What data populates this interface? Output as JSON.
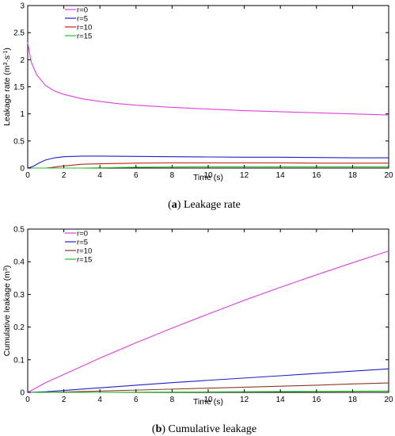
{
  "chart_data": [
    {
      "type": "line",
      "caption_label": "a",
      "caption_text": " Leakage rate",
      "xlabel": "Time (s)",
      "ylabel_main": "Leakage rate (m",
      "ylabel_sup1": "3",
      "ylabel_mid": "·s",
      "ylabel_sup2": "-1",
      "ylabel_end": ")",
      "xlim": [
        0,
        20
      ],
      "ylim": [
        0,
        3
      ],
      "xticks": [
        "0",
        "2",
        "4",
        "6",
        "8",
        "10",
        "12",
        "14",
        "16",
        "18",
        "20"
      ],
      "yticks": [
        "0",
        "0.5",
        "1",
        "1.5",
        "2",
        "2.5",
        "3"
      ],
      "series": [
        {
          "name": "r=0",
          "color": "#e040e0",
          "x": [
            0,
            0.05,
            0.2,
            0.5,
            0.8,
            1,
            1.5,
            2,
            3,
            4,
            5,
            6,
            8,
            10,
            12,
            14,
            16,
            18,
            20
          ],
          "y": [
            2.32,
            2.22,
            1.95,
            1.72,
            1.6,
            1.52,
            1.42,
            1.36,
            1.28,
            1.23,
            1.19,
            1.16,
            1.12,
            1.09,
            1.06,
            1.04,
            1.02,
            1.0,
            0.98
          ]
        },
        {
          "name": "r=5",
          "color": "#2020c8",
          "x": [
            0,
            0.3,
            0.6,
            1,
            1.5,
            2,
            3,
            4,
            6,
            8,
            10,
            12,
            14,
            16,
            18,
            20
          ],
          "y": [
            0,
            0.03,
            0.09,
            0.15,
            0.19,
            0.21,
            0.22,
            0.22,
            0.215,
            0.21,
            0.205,
            0.2,
            0.2,
            0.195,
            0.19,
            0.19
          ]
        },
        {
          "name": "r=10",
          "color": "#c02020",
          "x": [
            0,
            1,
            1.3,
            2,
            3,
            4,
            6,
            8,
            10,
            12,
            14,
            16,
            18,
            20
          ],
          "y": [
            0,
            0,
            0.01,
            0.04,
            0.07,
            0.08,
            0.09,
            0.095,
            0.095,
            0.095,
            0.095,
            0.09,
            0.09,
            0.09
          ]
        },
        {
          "name": "r=15",
          "color": "#20c020",
          "x": [
            0,
            3,
            4,
            6,
            8,
            10,
            12,
            14,
            16,
            18,
            20
          ],
          "y": [
            0,
            0,
            0.005,
            0.015,
            0.02,
            0.025,
            0.025,
            0.025,
            0.025,
            0.025,
            0.025
          ]
        }
      ]
    },
    {
      "type": "line",
      "caption_label": "b",
      "caption_text": " Cumulative leakage",
      "xlabel": "Time (s)",
      "ylabel_main": "Cumulative leakage (m",
      "ylabel_sup1": "3",
      "ylabel_mid": "",
      "ylabel_sup2": "",
      "ylabel_end": ")",
      "xlim": [
        0,
        20
      ],
      "ylim": [
        0,
        0.5
      ],
      "xticks": [
        "0",
        "2",
        "4",
        "6",
        "8",
        "10",
        "12",
        "14",
        "16",
        "18",
        "20"
      ],
      "yticks": [
        "0",
        "0.1",
        "0.2",
        "0.3",
        "0.4",
        "0.5"
      ],
      "series": [
        {
          "name": "r=0",
          "color": "#e040e0",
          "x": [
            0,
            1,
            2,
            4,
            6,
            8,
            10,
            12,
            14,
            16,
            18,
            20
          ],
          "y": [
            0,
            0.03,
            0.055,
            0.105,
            0.152,
            0.197,
            0.24,
            0.282,
            0.322,
            0.36,
            0.397,
            0.433
          ]
        },
        {
          "name": "r=5",
          "color": "#2020c8",
          "x": [
            0,
            1,
            2,
            4,
            6,
            8,
            10,
            12,
            14,
            16,
            18,
            20
          ],
          "y": [
            0,
            0.002,
            0.006,
            0.014,
            0.022,
            0.03,
            0.037,
            0.044,
            0.051,
            0.058,
            0.065,
            0.072
          ]
        },
        {
          "name": "r=10",
          "color": "#8b3a2a",
          "x": [
            0,
            1,
            2,
            4,
            6,
            8,
            10,
            12,
            14,
            16,
            18,
            20
          ],
          "y": [
            0,
            0,
            0.001,
            0.004,
            0.007,
            0.01,
            0.013,
            0.016,
            0.019,
            0.022,
            0.026,
            0.029
          ]
        },
        {
          "name": "r=15",
          "color": "#20c020",
          "x": [
            0,
            4,
            8,
            12,
            16,
            20
          ],
          "y": [
            0,
            0,
            0.001,
            0.002,
            0.003,
            0.004
          ]
        }
      ]
    }
  ]
}
